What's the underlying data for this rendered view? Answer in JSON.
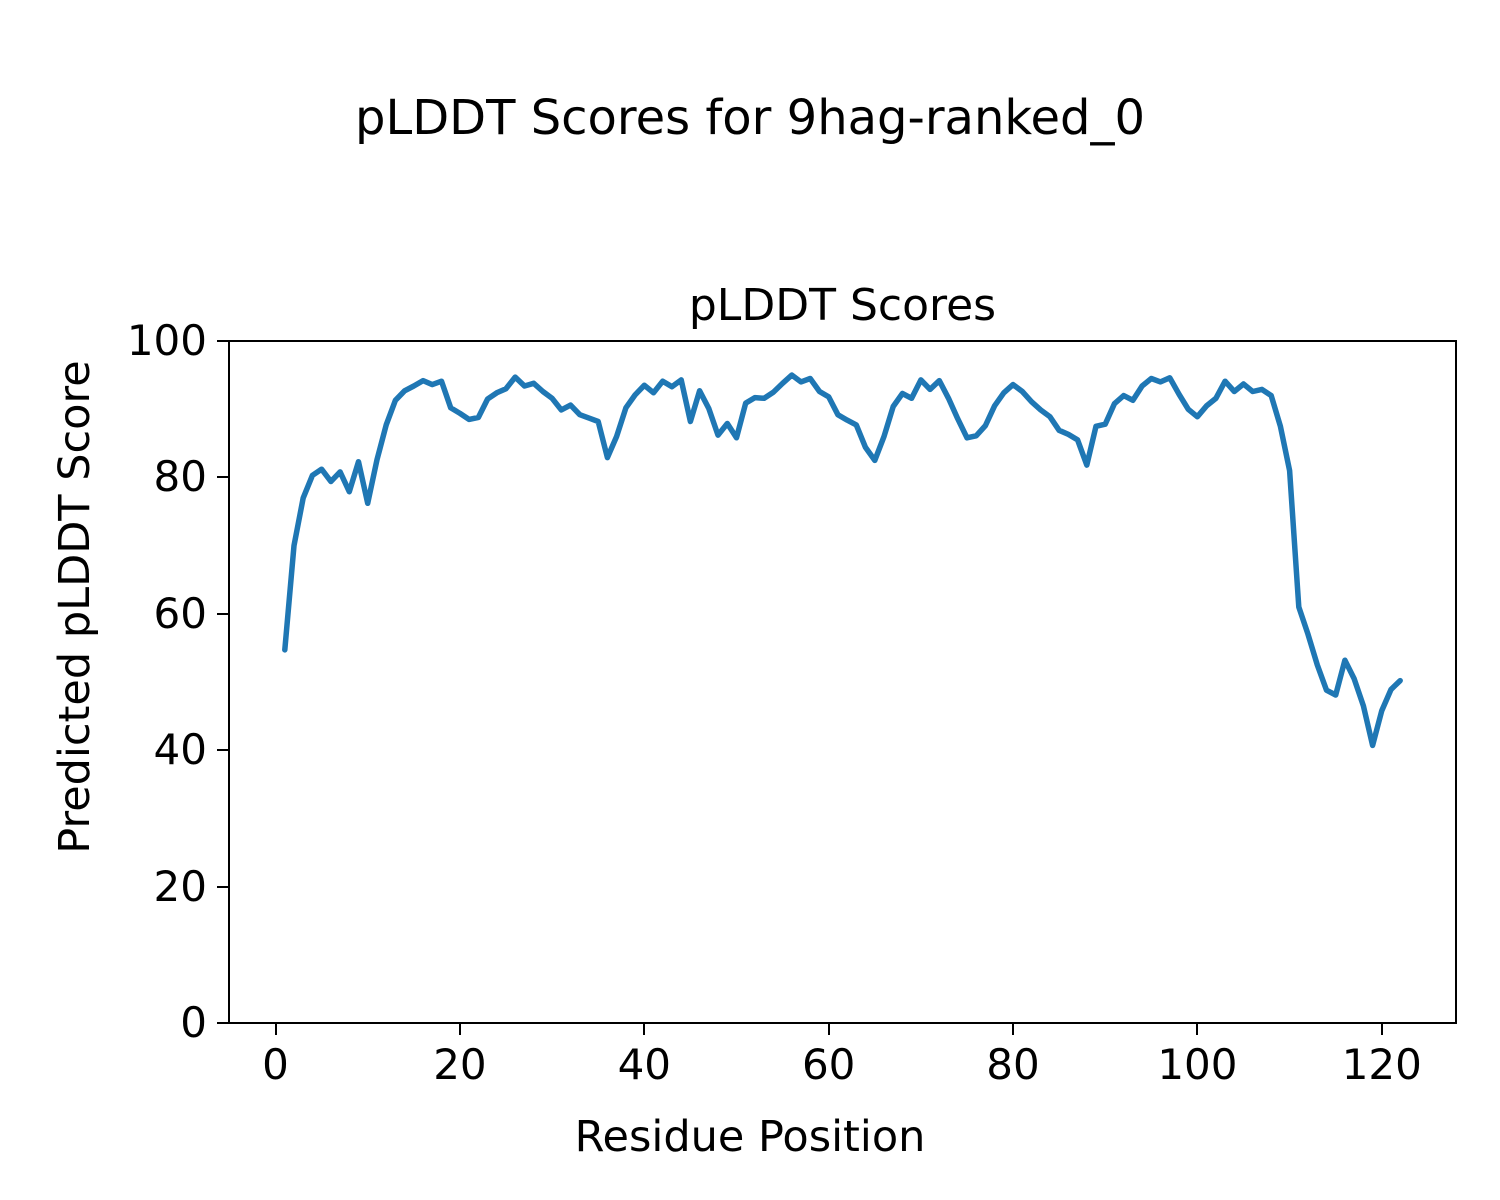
{
  "figure": {
    "suptitle": "pLDDT Scores for 9hag-ranked_0"
  },
  "chart_data": {
    "type": "line",
    "title": "pLDDT Scores",
    "xlabel": "Residue Position",
    "ylabel": "Predicted pLDDT Score",
    "xlim": [
      -5.05,
      128.05
    ],
    "ylim": [
      0,
      100
    ],
    "xticks": [
      0,
      20,
      40,
      60,
      80,
      100,
      120
    ],
    "yticks": [
      0,
      20,
      40,
      60,
      80,
      100
    ],
    "grid": false,
    "legend": "none",
    "background_color": "#ffffff",
    "frame_color": "#000000",
    "x": [
      1,
      2,
      3,
      4,
      5,
      6,
      7,
      8,
      9,
      10,
      11,
      12,
      13,
      14,
      15,
      16,
      17,
      18,
      19,
      20,
      21,
      22,
      23,
      24,
      25,
      26,
      27,
      28,
      29,
      30,
      31,
      32,
      33,
      34,
      35,
      36,
      37,
      38,
      39,
      40,
      41,
      42,
      43,
      44,
      45,
      46,
      47,
      48,
      49,
      50,
      51,
      52,
      53,
      54,
      55,
      56,
      57,
      58,
      59,
      60,
      61,
      62,
      63,
      64,
      65,
      66,
      67,
      68,
      69,
      70,
      71,
      72,
      73,
      74,
      75,
      76,
      77,
      78,
      79,
      80,
      81,
      82,
      83,
      84,
      85,
      86,
      87,
      88,
      89,
      90,
      91,
      92,
      93,
      94,
      95,
      96,
      97,
      98,
      99,
      100,
      101,
      102,
      103,
      104,
      105,
      106,
      107,
      108,
      109,
      110,
      111,
      112,
      113,
      114,
      115,
      116,
      117,
      118,
      119,
      120,
      121,
      122
    ],
    "series": [
      {
        "name": "pLDDT",
        "color": "#1f77b4",
        "line_width": 5.5,
        "values": [
          54.7,
          70.0,
          77.0,
          80.3,
          81.2,
          79.4,
          80.8,
          77.9,
          82.3,
          76.2,
          82.6,
          87.7,
          91.3,
          92.7,
          93.4,
          94.2,
          93.6,
          94.1,
          90.2,
          89.4,
          88.5,
          88.8,
          91.5,
          92.4,
          93.0,
          94.7,
          93.4,
          93.8,
          92.6,
          91.6,
          89.9,
          90.6,
          89.2,
          88.7,
          88.2,
          82.9,
          86.0,
          90.2,
          92.1,
          93.5,
          92.4,
          94.1,
          93.3,
          94.3,
          88.2,
          92.7,
          90.1,
          86.2,
          87.9,
          85.8,
          90.9,
          91.7,
          91.6,
          92.5,
          93.8,
          95.0,
          94.0,
          94.5,
          92.6,
          91.8,
          89.2,
          88.4,
          87.7,
          84.4,
          82.5,
          86.0,
          90.4,
          92.3,
          91.6,
          94.3,
          92.9,
          94.2,
          91.6,
          88.6,
          85.8,
          86.1,
          87.6,
          90.5,
          92.4,
          93.6,
          92.6,
          91.1,
          89.9,
          88.9,
          86.9,
          86.3,
          85.5,
          81.8,
          87.5,
          87.8,
          90.8,
          92.0,
          91.3,
          93.4,
          94.5,
          94.0,
          94.6,
          92.2,
          90.0,
          88.9,
          90.5,
          91.6,
          94.1,
          92.6,
          93.7,
          92.6,
          92.9,
          92.0,
          87.5,
          81.0,
          61.0,
          57.0,
          52.5,
          48.8,
          48.1,
          53.2,
          50.5,
          46.5,
          40.7,
          45.8,
          48.9,
          50.2
        ]
      }
    ]
  }
}
